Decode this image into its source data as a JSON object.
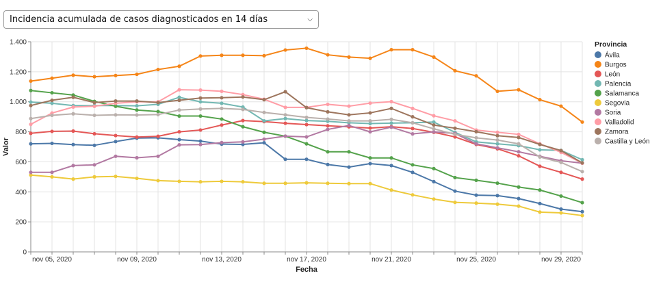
{
  "selector": {
    "selected": "Incidencia acumulada de casos diagnosticados en 14 días",
    "icon": "chevron-down-icon"
  },
  "chart_data": {
    "type": "line",
    "xlabel": "Fecha",
    "ylabel": "Valor",
    "ylim": [
      0,
      1400
    ],
    "yticks": [
      0,
      200,
      400,
      600,
      800,
      1000,
      1200,
      1400
    ],
    "ytick_labels": [
      "0",
      "200",
      "400",
      "600",
      "800",
      "1.000",
      "1.200",
      "1.400"
    ],
    "x": [
      "2020-11-04",
      "2020-11-05",
      "2020-11-06",
      "2020-11-07",
      "2020-11-08",
      "2020-11-09",
      "2020-11-10",
      "2020-11-11",
      "2020-11-12",
      "2020-11-13",
      "2020-11-14",
      "2020-11-15",
      "2020-11-16",
      "2020-11-17",
      "2020-11-18",
      "2020-11-19",
      "2020-11-20",
      "2020-11-21",
      "2020-11-22",
      "2020-11-23",
      "2020-11-24",
      "2020-11-25",
      "2020-11-26",
      "2020-11-27",
      "2020-11-28",
      "2020-11-29",
      "2020-11-30"
    ],
    "xtick_labels": [
      {
        "date": "2020-11-05",
        "label": "nov 05, 2020"
      },
      {
        "date": "2020-11-09",
        "label": "nov 09, 2020"
      },
      {
        "date": "2020-11-13",
        "label": "nov 13, 2020"
      },
      {
        "date": "2020-11-17",
        "label": "nov 17, 2020"
      },
      {
        "date": "2020-11-21",
        "label": "nov 21, 2020"
      },
      {
        "date": "2020-11-25",
        "label": "nov 25, 2020"
      },
      {
        "date": "2020-11-29",
        "label": "nov 29, 2020"
      }
    ],
    "grid": true,
    "legend": {
      "title": "Provincia",
      "placement": "right"
    },
    "series": [
      {
        "name": "Ávila",
        "color": "#4c78a8",
        "values": [
          720,
          723,
          715,
          710,
          735,
          758,
          760,
          748,
          738,
          718,
          716,
          727,
          617,
          617,
          582,
          565,
          588,
          575,
          530,
          468,
          405,
          378,
          375,
          355,
          322,
          285,
          268
        ]
      },
      {
        "name": "Burgos",
        "color": "#f58518",
        "values": [
          1138,
          1157,
          1177,
          1167,
          1175,
          1183,
          1215,
          1237,
          1305,
          1310,
          1310,
          1307,
          1345,
          1357,
          1313,
          1298,
          1290,
          1347,
          1347,
          1298,
          1207,
          1173,
          1070,
          1080,
          1014,
          971,
          865
        ]
      },
      {
        "name": "León",
        "color": "#e45756",
        "values": [
          790,
          803,
          805,
          787,
          775,
          765,
          770,
          800,
          812,
          845,
          875,
          868,
          857,
          848,
          840,
          833,
          825,
          834,
          822,
          797,
          766,
          716,
          687,
          640,
          571,
          530,
          485
        ]
      },
      {
        "name": "Palencia",
        "color": "#72b7b2",
        "values": [
          998,
          990,
          975,
          975,
          975,
          973,
          983,
          1030,
          1000,
          990,
          965,
          873,
          888,
          875,
          870,
          860,
          855,
          858,
          860,
          865,
          797,
          733,
          720,
          708,
          680,
          676,
          614
        ]
      },
      {
        "name": "Salamanca",
        "color": "#54a24b",
        "values": [
          1075,
          1060,
          1045,
          1003,
          970,
          945,
          935,
          905,
          905,
          885,
          834,
          797,
          771,
          720,
          667,
          667,
          626,
          626,
          580,
          555,
          495,
          477,
          458,
          432,
          412,
          372,
          328
        ]
      },
      {
        "name": "Segovia",
        "color": "#eeca3b",
        "values": [
          512,
          500,
          485,
          500,
          503,
          490,
          475,
          470,
          467,
          470,
          467,
          457,
          457,
          460,
          457,
          455,
          455,
          412,
          380,
          352,
          330,
          325,
          318,
          305,
          265,
          260,
          242
        ]
      },
      {
        "name": "Soria",
        "color": "#b279a2",
        "values": [
          530,
          530,
          575,
          580,
          637,
          627,
          637,
          713,
          715,
          728,
          733,
          751,
          771,
          766,
          816,
          842,
          800,
          831,
          786,
          800,
          789,
          720,
          693,
          667,
          637,
          607,
          591
        ]
      },
      {
        "name": "Valladolid",
        "color": "#ff9da6",
        "values": [
          850,
          925,
          965,
          970,
          990,
          1000,
          1000,
          1080,
          1078,
          1070,
          1048,
          1017,
          963,
          963,
          983,
          971,
          991,
          1001,
          956,
          907,
          873,
          812,
          797,
          783,
          720,
          663,
          591
        ]
      },
      {
        "name": "Zamora",
        "color": "#9d755d",
        "values": [
          975,
          1010,
          1030,
          995,
          1005,
          1005,
          995,
          1010,
          1025,
          1027,
          1032,
          1014,
          1067,
          961,
          933,
          913,
          926,
          956,
          900,
          845,
          824,
          801,
          774,
          762,
          716,
          675,
          593
        ]
      },
      {
        "name": "Castilla y León",
        "color": "#bab0ac",
        "values": [
          888,
          910,
          920,
          910,
          913,
          912,
          915,
          945,
          952,
          956,
          949,
          929,
          913,
          896,
          885,
          873,
          873,
          883,
          860,
          820,
          783,
          760,
          745,
          720,
          632,
          596,
          535
        ]
      }
    ]
  }
}
